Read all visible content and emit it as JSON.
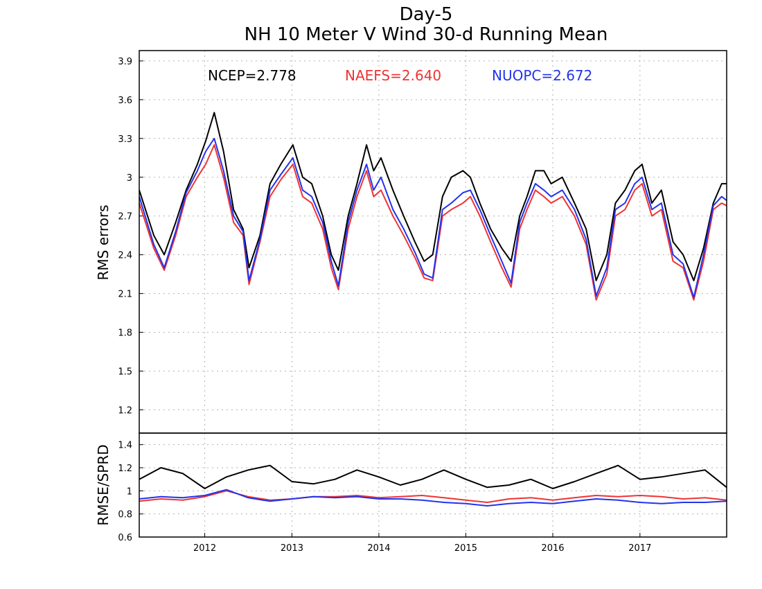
{
  "title_line1": "Day-5",
  "title_line2": "NH 10 Meter V Wind 30-d Running Mean",
  "colors": {
    "ncep": "#000000",
    "naefs": "#ee3333",
    "nuopc": "#2233ee",
    "grid": "#b0b0b0"
  },
  "legend": [
    {
      "label": "NCEP=2.778",
      "color": "#000000"
    },
    {
      "label": "NAEFS=2.640",
      "color": "#ee3333"
    },
    {
      "label": "NUOPC=2.672",
      "color": "#2233ee"
    }
  ],
  "chart_data": [
    {
      "type": "line",
      "ylabel": "RMS errors",
      "ylim": [
        1.02,
        3.98
      ],
      "yticks": [
        "1.2",
        "1.5",
        "1.8",
        "2.1",
        "2.4",
        "2.7",
        "3",
        "3.3",
        "3.6",
        "3.9"
      ],
      "xlim": [
        "2011-04-01",
        "2017-12-31"
      ],
      "grid": true,
      "legend_position": "top",
      "x": [
        "2011-04-01",
        "2011-06-01",
        "2011-07-15",
        "2011-09-01",
        "2011-10-15",
        "2011-12-01",
        "2012-01-05",
        "2012-02-10",
        "2012-03-20",
        "2012-05-01",
        "2012-06-10",
        "2012-07-05",
        "2012-08-20",
        "2012-10-01",
        "2012-11-15",
        "2013-01-05",
        "2013-02-15",
        "2013-03-25",
        "2013-05-10",
        "2013-06-15",
        "2013-07-15",
        "2013-08-25",
        "2013-10-01",
        "2013-11-10",
        "2013-12-10",
        "2014-01-10",
        "2014-03-01",
        "2014-04-15",
        "2014-06-01",
        "2014-07-10",
        "2014-08-15",
        "2014-09-25",
        "2014-11-01",
        "2014-12-20",
        "2015-01-20",
        "2015-03-01",
        "2015-04-15",
        "2015-06-01",
        "2015-07-10",
        "2015-08-15",
        "2015-09-15",
        "2015-10-20",
        "2015-11-25",
        "2015-12-25",
        "2016-02-10",
        "2016-04-01",
        "2016-05-20",
        "2016-07-01",
        "2016-08-15",
        "2016-09-20",
        "2016-10-30",
        "2016-12-10",
        "2017-01-10",
        "2017-02-20",
        "2017-04-01",
        "2017-05-20",
        "2017-07-01",
        "2017-08-15",
        "2017-09-25",
        "2017-11-05",
        "2017-12-10",
        "2017-12-31"
      ],
      "series": [
        {
          "name": "NCEP",
          "color": "#000000",
          "values": [
            2.9,
            2.55,
            2.4,
            2.65,
            2.9,
            3.1,
            3.28,
            3.5,
            3.2,
            2.75,
            2.6,
            2.3,
            2.55,
            2.95,
            3.1,
            3.25,
            3.0,
            2.95,
            2.7,
            2.4,
            2.28,
            2.7,
            2.95,
            3.25,
            3.05,
            3.15,
            2.9,
            2.7,
            2.5,
            2.35,
            2.4,
            2.85,
            3.0,
            3.05,
            3.0,
            2.8,
            2.6,
            2.45,
            2.35,
            2.7,
            2.85,
            3.05,
            3.05,
            2.95,
            3.0,
            2.8,
            2.6,
            2.2,
            2.4,
            2.8,
            2.9,
            3.05,
            3.1,
            2.8,
            2.9,
            2.5,
            2.4,
            2.2,
            2.45,
            2.8,
            2.95,
            2.95
          ]
        },
        {
          "name": "NAEFS",
          "color": "#ee3333",
          "values": [
            2.8,
            2.45,
            2.28,
            2.55,
            2.85,
            3.0,
            3.1,
            3.25,
            3.0,
            2.65,
            2.55,
            2.17,
            2.5,
            2.85,
            2.98,
            3.1,
            2.85,
            2.8,
            2.6,
            2.3,
            2.13,
            2.6,
            2.85,
            3.05,
            2.85,
            2.9,
            2.7,
            2.55,
            2.38,
            2.22,
            2.2,
            2.7,
            2.75,
            2.8,
            2.85,
            2.7,
            2.5,
            2.3,
            2.15,
            2.6,
            2.75,
            2.9,
            2.85,
            2.8,
            2.85,
            2.7,
            2.48,
            2.05,
            2.25,
            2.7,
            2.75,
            2.9,
            2.95,
            2.7,
            2.75,
            2.35,
            2.3,
            2.05,
            2.35,
            2.75,
            2.8,
            2.78
          ]
        },
        {
          "name": "NUOPC",
          "color": "#2233ee",
          "values": [
            2.85,
            2.48,
            2.3,
            2.58,
            2.88,
            3.05,
            3.2,
            3.3,
            3.05,
            2.7,
            2.58,
            2.2,
            2.52,
            2.9,
            3.02,
            3.15,
            2.9,
            2.85,
            2.65,
            2.35,
            2.16,
            2.65,
            2.9,
            3.1,
            2.9,
            3.0,
            2.75,
            2.6,
            2.42,
            2.25,
            2.22,
            2.75,
            2.8,
            2.88,
            2.9,
            2.75,
            2.55,
            2.35,
            2.18,
            2.65,
            2.8,
            2.95,
            2.9,
            2.85,
            2.9,
            2.75,
            2.52,
            2.08,
            2.3,
            2.75,
            2.8,
            2.95,
            3.0,
            2.75,
            2.8,
            2.4,
            2.33,
            2.07,
            2.4,
            2.78,
            2.85,
            2.82
          ]
        }
      ]
    },
    {
      "type": "line",
      "ylabel": "RMSE/SPRD",
      "ylim": [
        0.6,
        1.5
      ],
      "yticks": [
        "0.6",
        "0.8",
        "1",
        "1.2",
        "1.4"
      ],
      "xlim": [
        "2011-04-01",
        "2017-12-31"
      ],
      "xticks": [
        "2012",
        "2013",
        "2014",
        "2015",
        "2016",
        "2017"
      ],
      "grid": true,
      "x": [
        "2011-04-01",
        "2011-07-01",
        "2011-10-01",
        "2012-01-01",
        "2012-04-01",
        "2012-07-01",
        "2012-10-01",
        "2013-01-01",
        "2013-04-01",
        "2013-07-01",
        "2013-10-01",
        "2014-01-01",
        "2014-04-01",
        "2014-07-01",
        "2014-10-01",
        "2015-01-01",
        "2015-04-01",
        "2015-07-01",
        "2015-10-01",
        "2016-01-01",
        "2016-04-01",
        "2016-07-01",
        "2016-10-01",
        "2017-01-01",
        "2017-04-01",
        "2017-07-01",
        "2017-10-01",
        "2017-12-31"
      ],
      "series": [
        {
          "name": "NCEP",
          "color": "#000000",
          "values": [
            1.1,
            1.2,
            1.15,
            1.02,
            1.12,
            1.18,
            1.22,
            1.08,
            1.06,
            1.1,
            1.18,
            1.12,
            1.05,
            1.1,
            1.18,
            1.1,
            1.03,
            1.05,
            1.1,
            1.02,
            1.08,
            1.15,
            1.22,
            1.1,
            1.12,
            1.15,
            1.18,
            1.03
          ]
        },
        {
          "name": "NAEFS",
          "color": "#ee3333",
          "values": [
            0.91,
            0.93,
            0.92,
            0.95,
            1.0,
            0.95,
            0.92,
            0.93,
            0.95,
            0.95,
            0.96,
            0.94,
            0.95,
            0.96,
            0.94,
            0.92,
            0.9,
            0.93,
            0.94,
            0.92,
            0.94,
            0.96,
            0.95,
            0.96,
            0.95,
            0.93,
            0.94,
            0.92
          ]
        },
        {
          "name": "NUOPC",
          "color": "#2233ee",
          "values": [
            0.93,
            0.95,
            0.94,
            0.96,
            1.01,
            0.94,
            0.91,
            0.93,
            0.95,
            0.94,
            0.95,
            0.93,
            0.93,
            0.92,
            0.9,
            0.89,
            0.87,
            0.89,
            0.9,
            0.89,
            0.91,
            0.93,
            0.92,
            0.9,
            0.89,
            0.9,
            0.9,
            0.91
          ]
        }
      ]
    }
  ]
}
